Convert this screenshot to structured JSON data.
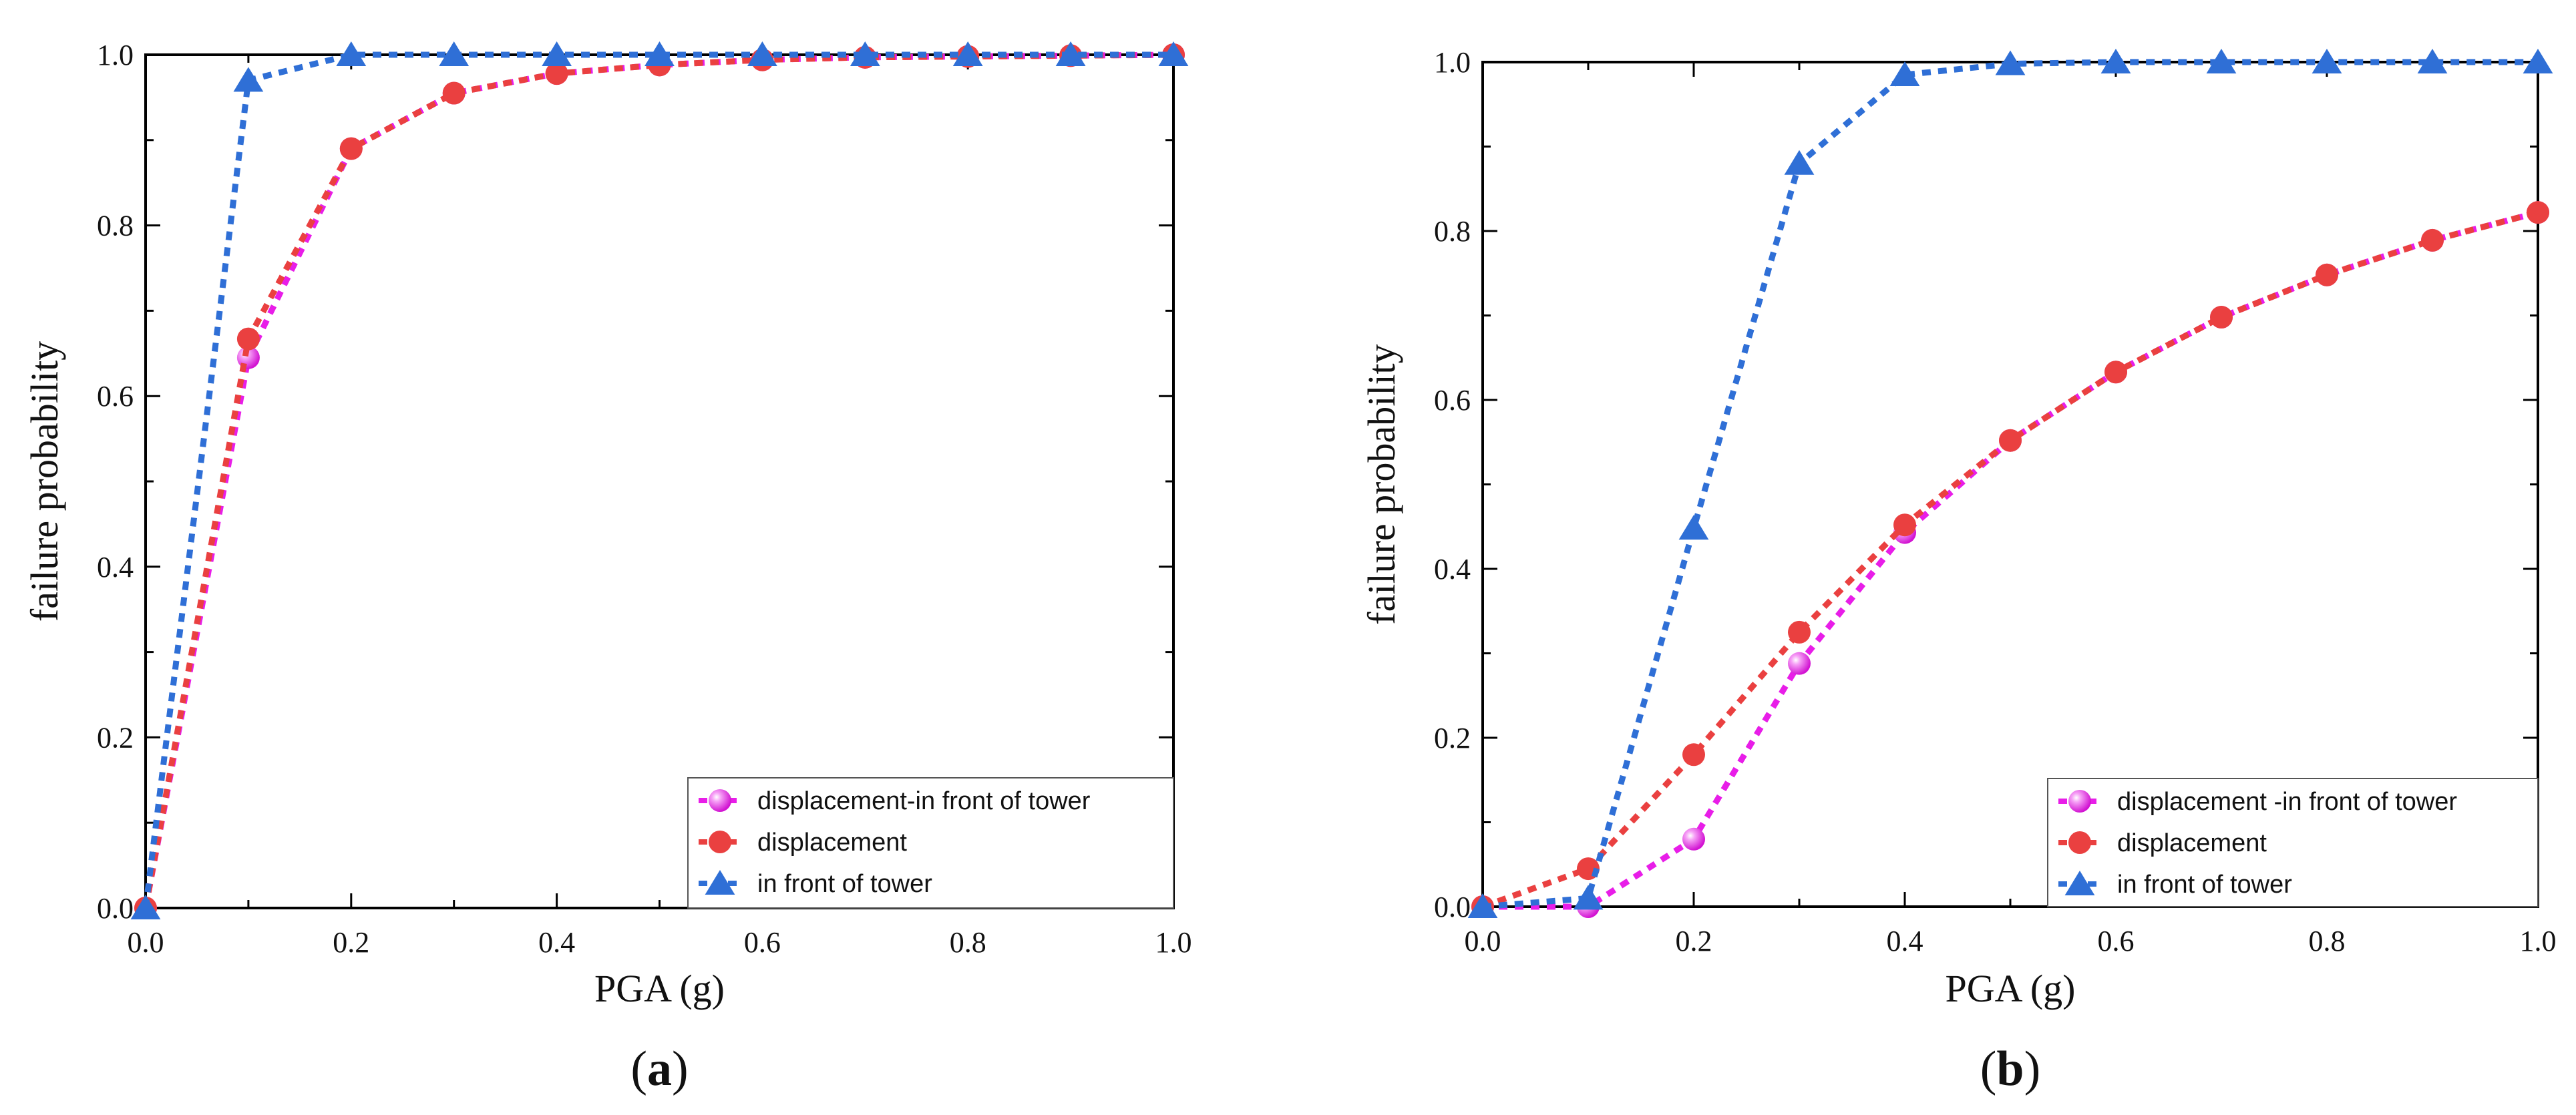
{
  "chart_data": [
    {
      "type": "line",
      "panel_label": "a",
      "xlabel": "PGA (g)",
      "ylabel": "failure probability",
      "xlim": [
        0,
        1.0
      ],
      "ylim": [
        0,
        1.0
      ],
      "x_ticks": [
        "0.0",
        "0.2",
        "0.4",
        "0.6",
        "0.8",
        "1.0"
      ],
      "y_ticks": [
        "0.0",
        "0.2",
        "0.4",
        "0.6",
        "0.8",
        "1.0"
      ],
      "legend_position": "bottom-right",
      "series": [
        {
          "name": "displacement-in front of  tower",
          "color": "#e81de8",
          "marker": "sphere",
          "x": [
            0.0,
            0.1,
            0.2,
            0.3,
            0.4,
            0.5,
            0.6,
            0.7,
            0.8,
            0.9,
            1.0
          ],
          "values": [
            0.0,
            0.645,
            0.89,
            0.955,
            0.978,
            0.988,
            0.994,
            0.997,
            0.998,
            0.999,
            1.0
          ]
        },
        {
          "name": "displacement",
          "color": "#ea4040",
          "marker": "circle",
          "x": [
            0.0,
            0.1,
            0.2,
            0.3,
            0.4,
            0.5,
            0.6,
            0.7,
            0.8,
            0.9,
            1.0
          ],
          "values": [
            0.0,
            0.667,
            0.89,
            0.955,
            0.978,
            0.988,
            0.994,
            0.997,
            0.998,
            0.999,
            1.0
          ]
        },
        {
          "name": "in front of  tower",
          "color": "#2f6fd6",
          "marker": "triangle",
          "x": [
            0.0,
            0.1,
            0.2,
            0.3,
            0.4,
            0.5,
            0.6,
            0.7,
            0.8,
            0.9,
            1.0
          ],
          "values": [
            0.0,
            0.97,
            1.0,
            1.0,
            1.0,
            1.0,
            1.0,
            1.0,
            1.0,
            1.0,
            1.0
          ]
        }
      ]
    },
    {
      "type": "line",
      "panel_label": "b",
      "xlabel": "PGA (g)",
      "ylabel": "failure probability",
      "xlim": [
        0,
        1.0
      ],
      "ylim": [
        0,
        1.0
      ],
      "x_ticks": [
        "0.0",
        "0.2",
        "0.4",
        "0.6",
        "0.8",
        "1.0"
      ],
      "y_ticks": [
        "0.0",
        "0.2",
        "0.4",
        "0.6",
        "0.8",
        "1.0"
      ],
      "legend_position": "bottom-right",
      "series": [
        {
          "name": "displacement -in front of tower",
          "color": "#e81de8",
          "marker": "sphere",
          "x": [
            0.0,
            0.1,
            0.2,
            0.3,
            0.4,
            0.5,
            0.6,
            0.7,
            0.8,
            0.9,
            1.0
          ],
          "values": [
            0.0,
            0.0,
            0.08,
            0.288,
            0.443,
            0.552,
            0.633,
            0.698,
            0.748,
            0.789,
            0.822
          ]
        },
        {
          "name": "displacement",
          "color": "#ea4040",
          "marker": "circle",
          "x": [
            0.0,
            0.1,
            0.2,
            0.3,
            0.4,
            0.5,
            0.6,
            0.7,
            0.8,
            0.9,
            1.0
          ],
          "values": [
            0.0,
            0.045,
            0.18,
            0.325,
            0.452,
            0.552,
            0.633,
            0.698,
            0.748,
            0.789,
            0.822
          ]
        },
        {
          "name": "in front of  tower",
          "color": "#2f6fd6",
          "marker": "triangle",
          "x": [
            0.0,
            0.1,
            0.2,
            0.3,
            0.4,
            0.5,
            0.6,
            0.7,
            0.8,
            0.9,
            1.0
          ],
          "values": [
            0.0,
            0.01,
            0.448,
            0.88,
            0.985,
            0.998,
            1.0,
            1.0,
            1.0,
            1.0,
            1.0
          ]
        }
      ]
    }
  ]
}
